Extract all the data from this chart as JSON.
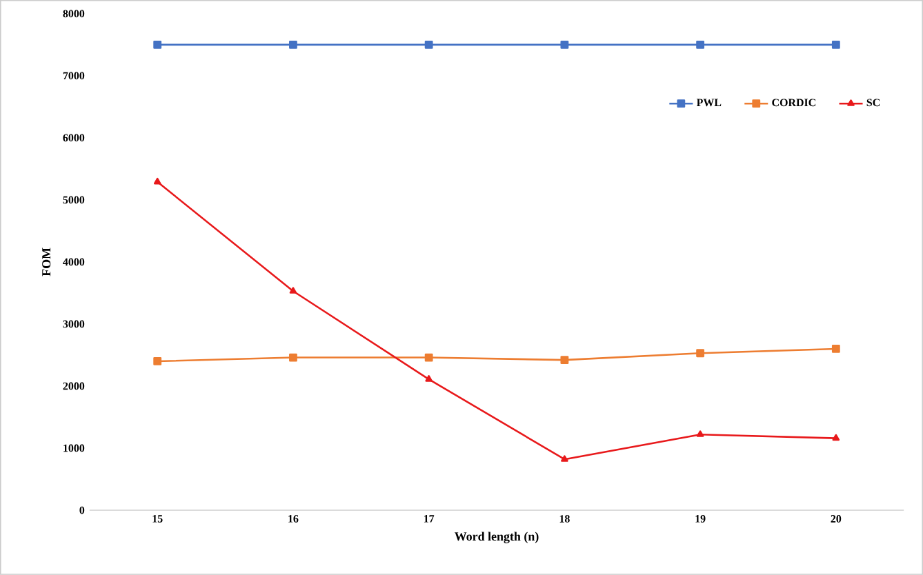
{
  "chart_data": {
    "type": "line",
    "xlabel": "Word length (n)",
    "ylabel": "FOM",
    "categories": [
      "15",
      "16",
      "17",
      "18",
      "19",
      "20"
    ],
    "ylim": [
      0,
      8000
    ],
    "yticks": [
      0,
      1000,
      2000,
      3000,
      4000,
      5000,
      6000,
      7000,
      8000
    ],
    "grid": false,
    "legend": "top right",
    "series": [
      {
        "name": "PWL",
        "color": "#4472c4",
        "marker": "square",
        "values": [
          7500,
          7500,
          7500,
          7500,
          7500,
          7500
        ]
      },
      {
        "name": "CORDIC",
        "color": "#ed7d31",
        "marker": "square",
        "values": [
          2400,
          2460,
          2460,
          2420,
          2530,
          2600
        ]
      },
      {
        "name": "SC",
        "color": "#e8191b",
        "marker": "triangle",
        "values": [
          5290,
          3530,
          2110,
          820,
          1220,
          1160
        ]
      }
    ]
  }
}
